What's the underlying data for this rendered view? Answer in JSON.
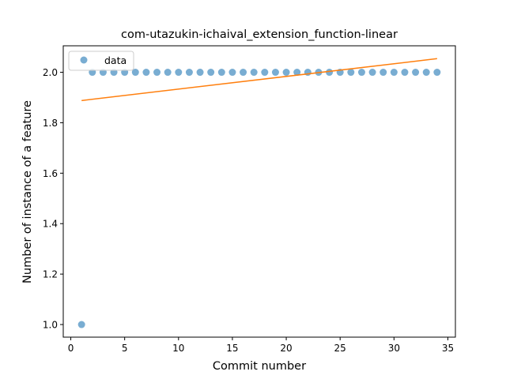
{
  "chart_data": {
    "type": "scatter",
    "title": "com-utazukin-ichaival_extension_function-linear",
    "xlabel": "Commit number",
    "ylabel": "Number of instance of a feature",
    "xlim": [
      -0.7,
      35.7
    ],
    "ylim": [
      0.95,
      2.105
    ],
    "xticks": [
      0,
      5,
      10,
      15,
      20,
      25,
      30,
      35
    ],
    "yticks": [
      1.0,
      1.2,
      1.4,
      1.6,
      1.8,
      2.0
    ],
    "xtick_labels": [
      "0",
      "5",
      "10",
      "15",
      "20",
      "25",
      "30",
      "35"
    ],
    "ytick_labels": [
      "1.0",
      "1.2",
      "1.4",
      "1.6",
      "1.8",
      "2.0"
    ],
    "grid": false,
    "legend_position": "upper-left",
    "series": [
      {
        "name": "data",
        "kind": "scatter",
        "color": "#1f77b4",
        "x": [
          1,
          2,
          3,
          4,
          5,
          6,
          7,
          8,
          9,
          10,
          11,
          12,
          13,
          14,
          15,
          16,
          17,
          18,
          19,
          20,
          21,
          22,
          23,
          24,
          25,
          26,
          27,
          28,
          29,
          30,
          31,
          32,
          33,
          34
        ],
        "y": [
          1,
          2,
          2,
          2,
          2,
          2,
          2,
          2,
          2,
          2,
          2,
          2,
          2,
          2,
          2,
          2,
          2,
          2,
          2,
          2,
          2,
          2,
          2,
          2,
          2,
          2,
          2,
          2,
          2,
          2,
          2,
          2,
          2,
          2
        ]
      },
      {
        "kind": "line",
        "color": "#ff7f0e",
        "x": [
          1,
          34
        ],
        "y": [
          1.888,
          2.054
        ]
      }
    ]
  }
}
